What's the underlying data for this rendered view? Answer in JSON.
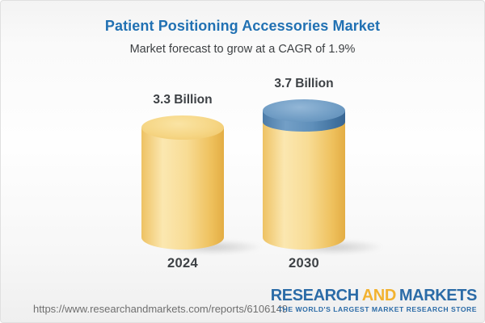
{
  "header": {
    "title": "Patient Positioning Accessories Market",
    "subtitle": "Market forecast to grow at a CAGR of 1.9%"
  },
  "chart_data": {
    "type": "bar",
    "variant": "3d-cylinder",
    "title": "Patient Positioning Accessories Market",
    "subtitle": "Market forecast to grow at a CAGR of 1.9%",
    "cagr": "1.9%",
    "unit": "Billion",
    "categories": [
      "2024",
      "2030"
    ],
    "values": [
      3.3,
      3.7
    ],
    "bars": [
      {
        "category": "2024",
        "value": 3.3,
        "value_label": "3.3 Billion",
        "color": "#f3d185"
      },
      {
        "category": "2030",
        "value": 3.7,
        "value_label": "3.7 Billion",
        "color": "#f3d185",
        "cap_color": "#5f8fba",
        "cap_meaning": "forecast growth segment"
      }
    ],
    "colors": {
      "bar_gold": "#f3d185",
      "growth_cap_blue": "#5f8fba"
    },
    "legend": "none",
    "grid": "off",
    "axes": "none"
  },
  "footer": {
    "url": "https://www.researchandmarkets.com/reports/6106149",
    "logo": {
      "word1": "RESEARCH",
      "word2": "AND",
      "word3": "MARKETS",
      "tagline": "THE WORLD'S LARGEST MARKET RESEARCH STORE",
      "brand_blue": "#2b6ba7",
      "brand_orange": "#f2b230"
    }
  }
}
